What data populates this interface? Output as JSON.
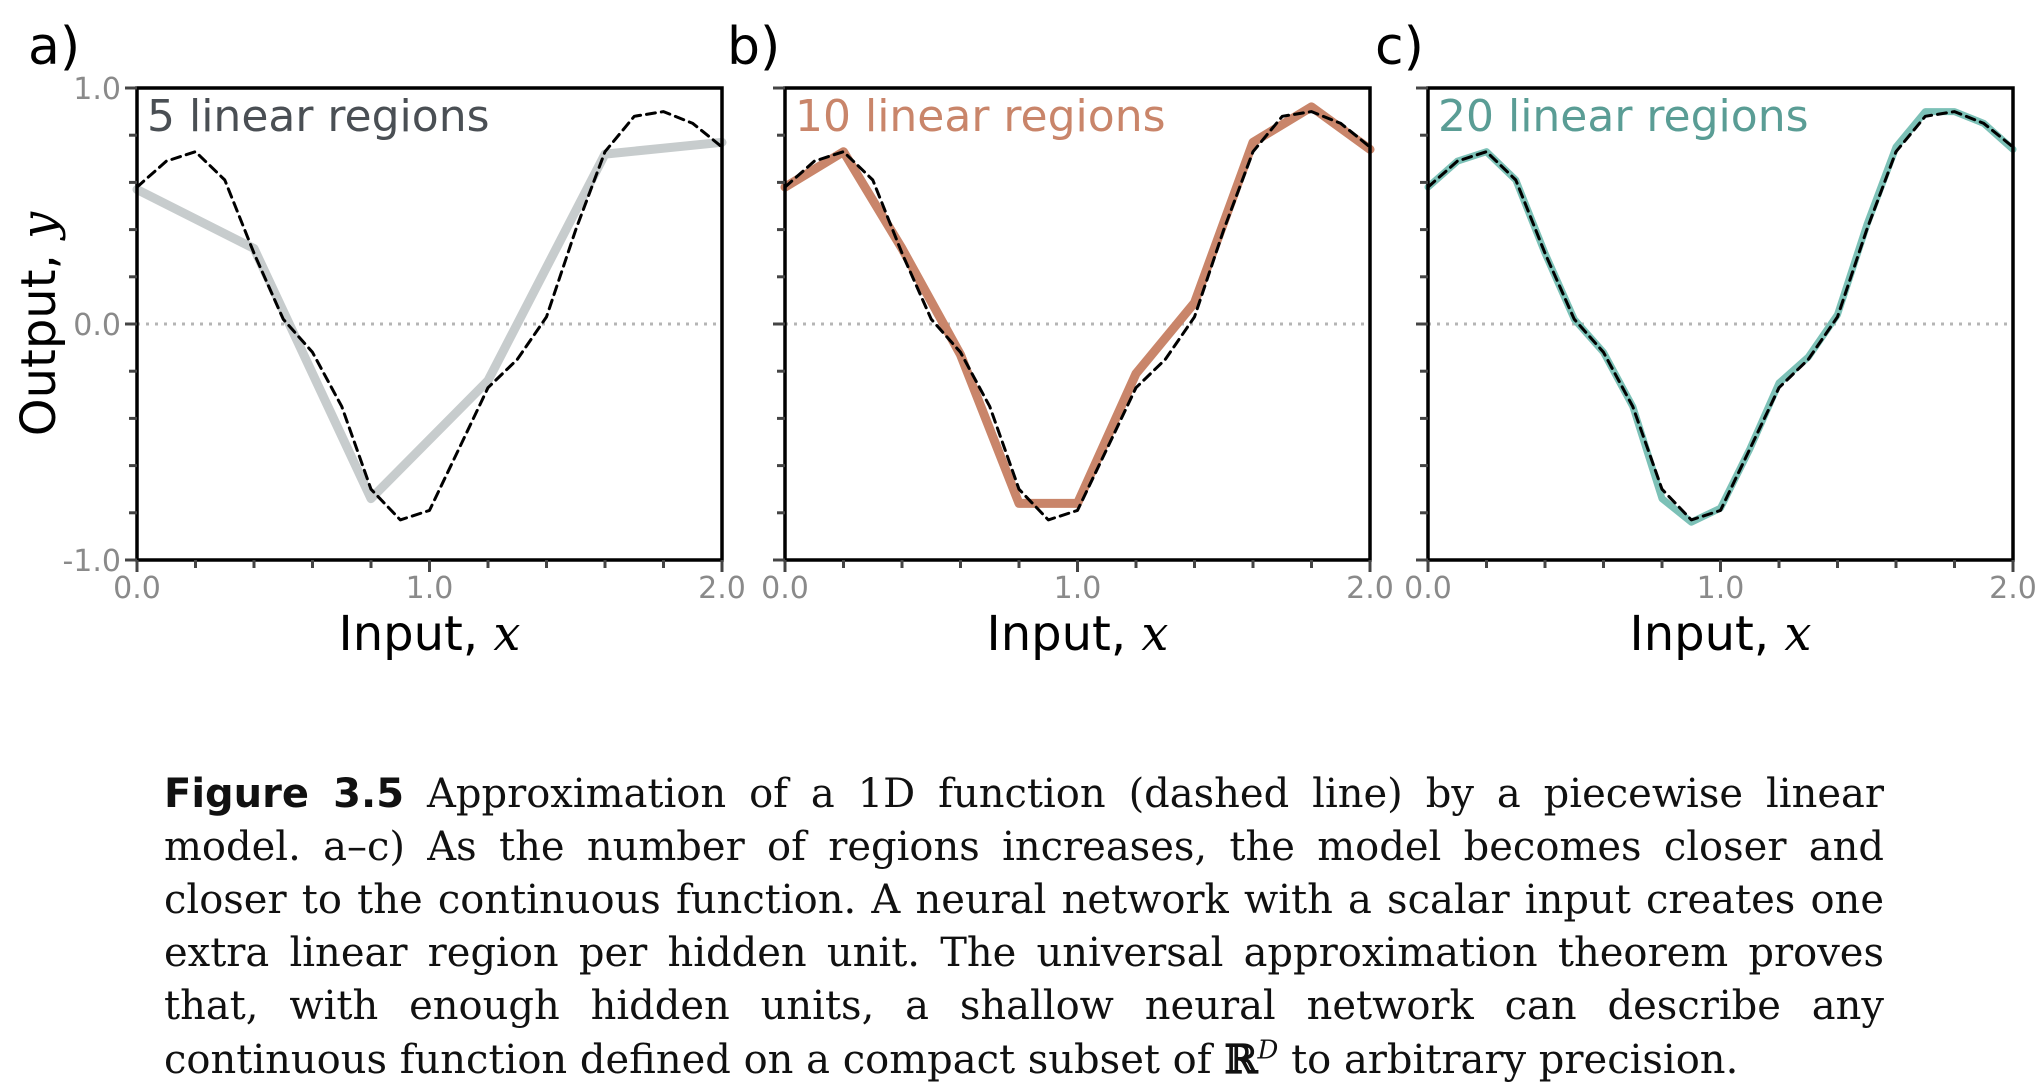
{
  "chart_data": [
    {
      "type": "line",
      "panel_label": "a)",
      "annotation": "5 linear regions",
      "xlabel": "Input,",
      "xlabel_var": "x",
      "ylabel": "Output,",
      "ylabel_var": "y",
      "xlim": [
        0,
        2
      ],
      "ylim": [
        -1,
        1
      ],
      "xticks": [
        "0.0",
        "1.0",
        "2.0"
      ],
      "yticks": [
        "-1.0",
        "0.0",
        "1.0"
      ],
      "grid": false,
      "zero_line": "dotted",
      "series": [
        {
          "x": [
            0.0,
            0.4,
            0.8,
            1.2,
            1.6,
            2.0
          ],
          "y": [
            0.57,
            0.32,
            -0.74,
            -0.24,
            0.72,
            0.77
          ],
          "color": "#c7cccd"
        },
        {
          "x": [
            0.0,
            0.1,
            0.2,
            0.3,
            0.4,
            0.5,
            0.6,
            0.7,
            0.8,
            0.9,
            1.0,
            1.1,
            1.2,
            1.3,
            1.4,
            1.5,
            1.6,
            1.7,
            1.8,
            1.9,
            2.0
          ],
          "y": [
            0.58,
            0.69,
            0.73,
            0.61,
            0.3,
            0.02,
            -0.12,
            -0.35,
            -0.7,
            -0.83,
            -0.79,
            -0.53,
            -0.27,
            -0.15,
            0.03,
            0.4,
            0.73,
            0.88,
            0.9,
            0.85,
            0.75
          ],
          "dashed": true,
          "color": "#000000"
        }
      ]
    },
    {
      "type": "line",
      "panel_label": "b)",
      "annotation": "10 linear regions",
      "xlabel": "Input,",
      "xlabel_var": "x",
      "xlim": [
        0,
        2
      ],
      "ylim": [
        -1,
        1
      ],
      "xticks": [
        "0.0",
        "1.0",
        "2.0"
      ],
      "grid": false,
      "zero_line": "dotted",
      "series": [
        {
          "x": [
            0.0,
            0.2,
            0.4,
            0.6,
            0.8,
            1.0,
            1.2,
            1.4,
            1.6,
            1.8,
            2.0
          ],
          "y": [
            0.58,
            0.73,
            0.32,
            -0.13,
            -0.76,
            -0.76,
            -0.21,
            0.09,
            0.77,
            0.92,
            0.74
          ],
          "color": "#c9856a"
        },
        {
          "x": [
            0.0,
            0.1,
            0.2,
            0.3,
            0.4,
            0.5,
            0.6,
            0.7,
            0.8,
            0.9,
            1.0,
            1.1,
            1.2,
            1.3,
            1.4,
            1.5,
            1.6,
            1.7,
            1.8,
            1.9,
            2.0
          ],
          "y": [
            0.58,
            0.69,
            0.73,
            0.61,
            0.3,
            0.02,
            -0.12,
            -0.35,
            -0.7,
            -0.83,
            -0.79,
            -0.53,
            -0.27,
            -0.15,
            0.03,
            0.4,
            0.73,
            0.88,
            0.9,
            0.85,
            0.75
          ],
          "dashed": true,
          "color": "#000000"
        }
      ]
    },
    {
      "type": "line",
      "panel_label": "c)",
      "annotation": "20 linear regions",
      "xlabel": "Input,",
      "xlabel_var": "x",
      "xlim": [
        0,
        2
      ],
      "ylim": [
        -1,
        1
      ],
      "xticks": [
        "0.0",
        "1.0",
        "2.0"
      ],
      "grid": false,
      "zero_line": "dotted",
      "series": [
        {
          "x": [
            0.0,
            0.1,
            0.2,
            0.3,
            0.4,
            0.5,
            0.6,
            0.7,
            0.8,
            0.9,
            1.0,
            1.1,
            1.2,
            1.3,
            1.4,
            1.5,
            1.6,
            1.7,
            1.8,
            1.9,
            2.0
          ],
          "y": [
            0.58,
            0.69,
            0.73,
            0.61,
            0.3,
            0.02,
            -0.12,
            -0.35,
            -0.74,
            -0.84,
            -0.78,
            -0.53,
            -0.25,
            -0.14,
            0.04,
            0.42,
            0.75,
            0.9,
            0.9,
            0.85,
            0.74
          ],
          "color": "#7cc1b7"
        },
        {
          "x": [
            0.0,
            0.1,
            0.2,
            0.3,
            0.4,
            0.5,
            0.6,
            0.7,
            0.8,
            0.9,
            1.0,
            1.1,
            1.2,
            1.3,
            1.4,
            1.5,
            1.6,
            1.7,
            1.8,
            1.9,
            2.0
          ],
          "y": [
            0.58,
            0.69,
            0.73,
            0.61,
            0.3,
            0.02,
            -0.12,
            -0.35,
            -0.7,
            -0.83,
            -0.79,
            -0.53,
            -0.27,
            -0.15,
            0.03,
            0.4,
            0.73,
            0.88,
            0.9,
            0.85,
            0.75
          ],
          "dashed": true,
          "color": "#000000"
        }
      ]
    }
  ],
  "caption": {
    "lead": "Figure 3.5",
    "part1": " Approximation of a 1D function (dashed line) by a piecewise linear model. a–c) As the number of regions increases, the model becomes closer and closer to the continuous function. A neural network with a scalar input creates one extra linear region per hidden unit. The universal approximation theorem proves that, with enough hidden units, a shallow neural network can describe any continuous function defined on a compact subset of ",
    "set_symbol": "ℝ",
    "superscript": "D",
    "part2": " to arbitrary precision."
  },
  "colors": {
    "text_annotation_a": "#4a4f54",
    "text_annotation_b": "#c9856a",
    "text_annotation_c": "#5a9d95",
    "tick_label": "#8a8a8a"
  }
}
